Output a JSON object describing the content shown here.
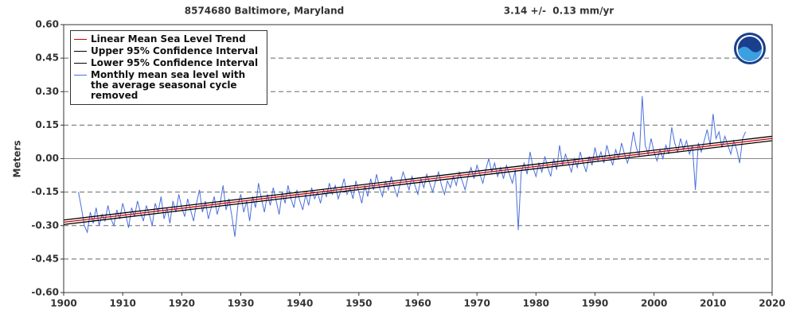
{
  "chart_data": {
    "type": "line",
    "title": "8574680 Baltimore, Maryland",
    "subtitle": "3.14 +/-  0.13 mm/yr",
    "y_label": "Meters",
    "xlim": [
      1900,
      2020
    ],
    "xticks": [
      1900,
      1910,
      1920,
      1930,
      1940,
      1950,
      1960,
      1970,
      1980,
      1990,
      2000,
      2010,
      2020
    ],
    "ylim": [
      -0.6,
      0.6
    ],
    "yticks": [
      {
        "value": -0.6,
        "label": "-0.60"
      },
      {
        "value": -0.45,
        "label": "-0.45"
      },
      {
        "value": -0.3,
        "label": "-0.30"
      },
      {
        "value": -0.15,
        "label": "-0.15"
      },
      {
        "value": 0,
        "label": "0.00"
      },
      {
        "value": 0.15,
        "label": "0.15"
      },
      {
        "value": 0.3,
        "label": "0.30"
      },
      {
        "value": 0.45,
        "label": "0.45"
      },
      {
        "value": 0.6,
        "label": "0.60"
      }
    ],
    "grid": true,
    "legend": "upper left",
    "series": [
      {
        "name": "Linear Mean Sea Level Trend",
        "color": "#cc0000",
        "x": [
          1900,
          2020
        ],
        "values": [
          -0.285,
          0.09
        ]
      },
      {
        "name": "Upper 95% Confidence Interval",
        "color": "#000000",
        "x": [
          1900,
          2020
        ],
        "values": [
          -0.275,
          0.1
        ]
      },
      {
        "name": "Lower 95% Confidence Interval",
        "color": "#000000",
        "x": [
          1900,
          2020
        ],
        "values": [
          -0.295,
          0.08
        ]
      },
      {
        "name": "Monthly mean sea level with the average seasonal cycle removed",
        "color": "#4a6fdc",
        "x": [
          1902.5,
          1903,
          1903.5,
          1904,
          1904.5,
          1905,
          1905.5,
          1906,
          1906.5,
          1907,
          1907.5,
          1908,
          1908.5,
          1909,
          1909.5,
          1910,
          1910.5,
          1911,
          1911.5,
          1912,
          1912.5,
          1913,
          1913.5,
          1914,
          1914.5,
          1915,
          1915.5,
          1916,
          1916.5,
          1917,
          1917.5,
          1918,
          1918.5,
          1919,
          1919.5,
          1920,
          1920.5,
          1921,
          1921.5,
          1922,
          1922.5,
          1923,
          1923.5,
          1924,
          1924.5,
          1925,
          1925.5,
          1926,
          1926.5,
          1927,
          1927.5,
          1928,
          1928.5,
          1929,
          1929.5,
          1930,
          1930.5,
          1931,
          1931.5,
          1932,
          1932.5,
          1933,
          1933.5,
          1934,
          1934.5,
          1935,
          1935.5,
          1936,
          1936.5,
          1937,
          1937.5,
          1938,
          1938.5,
          1939,
          1939.5,
          1940,
          1940.5,
          1941,
          1941.5,
          1942,
          1942.5,
          1943,
          1943.5,
          1944,
          1944.5,
          1945,
          1945.5,
          1946,
          1946.5,
          1947,
          1947.5,
          1948,
          1948.5,
          1949,
          1949.5,
          1950,
          1950.5,
          1951,
          1951.5,
          1952,
          1952.5,
          1953,
          1953.5,
          1954,
          1954.5,
          1955,
          1955.5,
          1956,
          1956.5,
          1957,
          1957.5,
          1958,
          1958.5,
          1959,
          1959.5,
          1960,
          1960.5,
          1961,
          1961.5,
          1962,
          1962.5,
          1963,
          1963.5,
          1964,
          1964.5,
          1965,
          1965.5,
          1966,
          1966.5,
          1967,
          1967.5,
          1968,
          1968.5,
          1969,
          1969.5,
          1970,
          1970.5,
          1971,
          1971.5,
          1972,
          1972.5,
          1973,
          1973.5,
          1974,
          1974.5,
          1975,
          1975.5,
          1976,
          1976.5,
          1977,
          1977.5,
          1978,
          1978.5,
          1979,
          1979.5,
          1980,
          1980.5,
          1981,
          1981.5,
          1982,
          1982.5,
          1983,
          1983.5,
          1984,
          1984.5,
          1985,
          1985.5,
          1986,
          1986.5,
          1987,
          1987.5,
          1988,
          1988.5,
          1989,
          1989.5,
          1990,
          1990.5,
          1991,
          1991.5,
          1992,
          1992.5,
          1993,
          1993.5,
          1994,
          1994.5,
          1995,
          1995.5,
          1996,
          1996.5,
          1997,
          1997.5,
          1998,
          1998.5,
          1999,
          1999.5,
          2000,
          2000.5,
          2001,
          2001.5,
          2002,
          2002.5,
          2003,
          2003.5,
          2004,
          2004.5,
          2005,
          2005.5,
          2006,
          2006.5,
          2007,
          2007.5,
          2008,
          2008.5,
          2009,
          2009.5,
          2010,
          2010.5,
          2011,
          2011.5,
          2012,
          2012.5,
          2013,
          2013.5,
          2014,
          2014.5,
          2015,
          2015.5
        ],
        "values": [
          -0.15,
          -0.22,
          -0.3,
          -0.33,
          -0.24,
          -0.29,
          -0.22,
          -0.3,
          -0.25,
          -0.28,
          -0.21,
          -0.27,
          -0.3,
          -0.23,
          -0.27,
          -0.2,
          -0.25,
          -0.31,
          -0.22,
          -0.26,
          -0.19,
          -0.24,
          -0.28,
          -0.21,
          -0.25,
          -0.3,
          -0.2,
          -0.24,
          -0.17,
          -0.27,
          -0.22,
          -0.29,
          -0.19,
          -0.24,
          -0.16,
          -0.22,
          -0.26,
          -0.18,
          -0.23,
          -0.28,
          -0.2,
          -0.14,
          -0.24,
          -0.19,
          -0.27,
          -0.22,
          -0.17,
          -0.25,
          -0.2,
          -0.12,
          -0.23,
          -0.18,
          -0.26,
          -0.35,
          -0.21,
          -0.16,
          -0.24,
          -0.19,
          -0.28,
          -0.17,
          -0.22,
          -0.11,
          -0.18,
          -0.24,
          -0.16,
          -0.21,
          -0.13,
          -0.19,
          -0.25,
          -0.15,
          -0.2,
          -0.12,
          -0.18,
          -0.22,
          -0.14,
          -0.19,
          -0.23,
          -0.16,
          -0.21,
          -0.13,
          -0.18,
          -0.15,
          -0.2,
          -0.14,
          -0.17,
          -0.11,
          -0.16,
          -0.12,
          -0.18,
          -0.14,
          -0.09,
          -0.16,
          -0.13,
          -0.18,
          -0.1,
          -0.15,
          -0.2,
          -0.12,
          -0.17,
          -0.09,
          -0.14,
          -0.07,
          -0.13,
          -0.17,
          -0.1,
          -0.14,
          -0.08,
          -0.13,
          -0.17,
          -0.11,
          -0.06,
          -0.1,
          -0.14,
          -0.08,
          -0.12,
          -0.16,
          -0.09,
          -0.13,
          -0.07,
          -0.11,
          -0.15,
          -0.1,
          -0.06,
          -0.12,
          -0.16,
          -0.1,
          -0.13,
          -0.08,
          -0.12,
          -0.06,
          -0.1,
          -0.14,
          -0.08,
          -0.04,
          -0.09,
          -0.03,
          -0.07,
          -0.11,
          -0.05,
          0.0,
          -0.06,
          -0.02,
          -0.08,
          -0.04,
          -0.09,
          -0.03,
          -0.07,
          -0.11,
          -0.05,
          -0.32,
          -0.06,
          -0.02,
          -0.07,
          0.03,
          -0.04,
          -0.08,
          -0.02,
          -0.06,
          0.01,
          -0.04,
          -0.08,
          0.0,
          -0.05,
          0.06,
          -0.03,
          0.02,
          -0.02,
          -0.06,
          0.0,
          -0.04,
          0.03,
          -0.02,
          -0.06,
          0.01,
          -0.03,
          0.05,
          -0.01,
          0.03,
          -0.02,
          0.06,
          0.01,
          -0.03,
          0.04,
          0.0,
          0.07,
          0.02,
          -0.02,
          0.03,
          0.12,
          0.05,
          0.01,
          0.28,
          0.06,
          0.02,
          0.09,
          0.03,
          -0.01,
          0.04,
          0.0,
          0.06,
          0.02,
          0.14,
          0.07,
          0.03,
          0.09,
          0.04,
          0.08,
          0.02,
          0.06,
          -0.14,
          0.07,
          0.03,
          0.08,
          0.13,
          0.06,
          0.2,
          0.09,
          0.12,
          0.05,
          0.1,
          0.06,
          0.02,
          0.08,
          0.04,
          -0.02,
          0.09,
          0.12
        ]
      }
    ]
  }
}
